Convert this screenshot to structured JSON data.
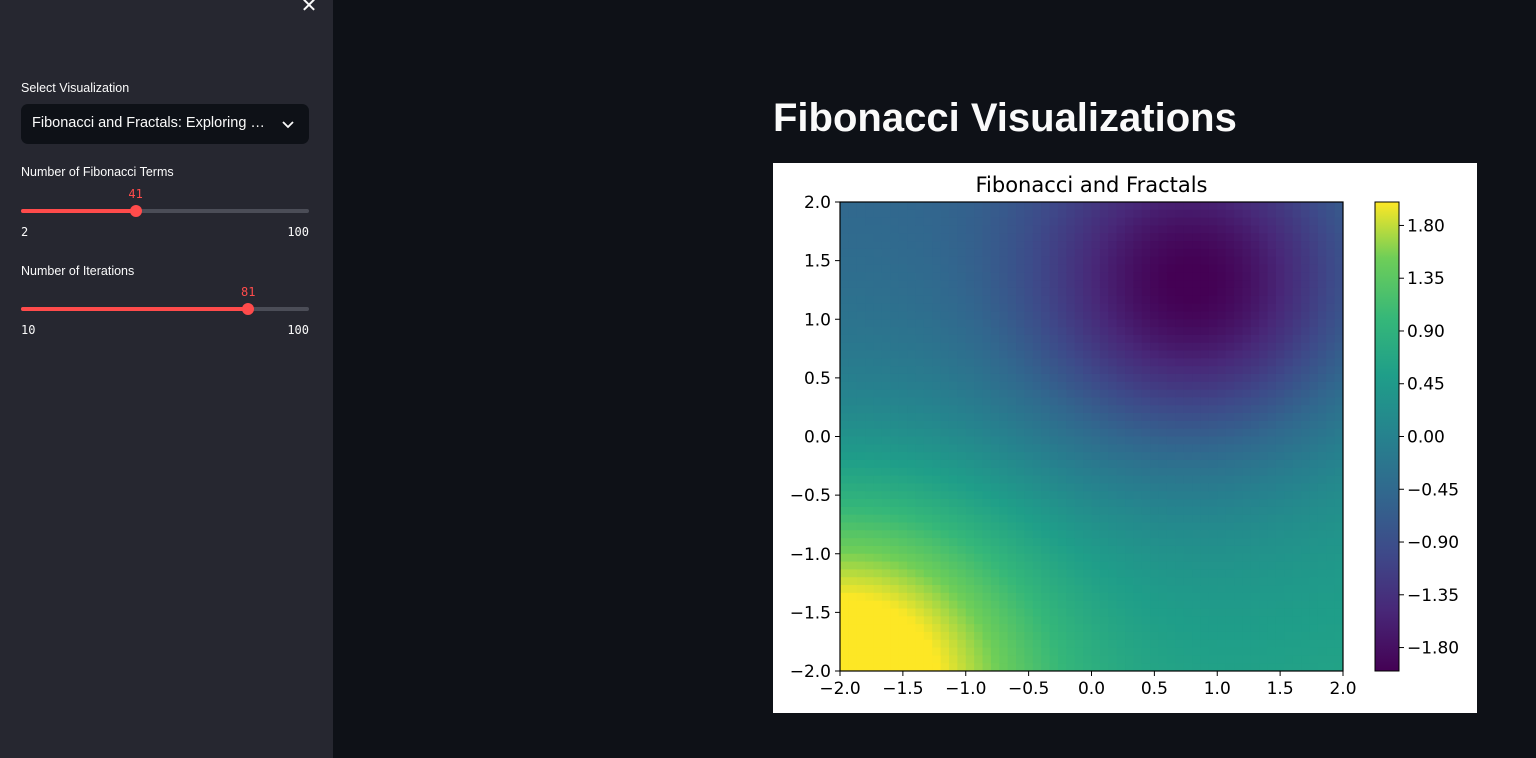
{
  "sidebar": {
    "close_icon": "close-icon",
    "select": {
      "label": "Select Visualization",
      "value": "Fibonacci and Fractals: Exploring the Mandelbrot Set"
    },
    "slider_terms": {
      "label": "Number of Fibonacci Terms",
      "value": "41",
      "min": "2",
      "max": "100",
      "fraction": 0.398
    },
    "slider_iterations": {
      "label": "Number of Iterations",
      "value": "81",
      "min": "10",
      "max": "100",
      "fraction": 0.789
    }
  },
  "main": {
    "title": "Fibonacci Visualizations"
  },
  "colors": {
    "accent": "#ff4b4b",
    "background": "#0e1117",
    "sidebar": "#262730"
  },
  "chart_data": {
    "type": "heatmap",
    "title": "Fibonacci and Fractals",
    "colormap": "viridis",
    "xlim": [
      -2.0,
      2.0
    ],
    "ylim": [
      -2.0,
      2.0
    ],
    "xticks": [
      "−2.0",
      "−1.5",
      "−1.0",
      "−0.5",
      "0.0",
      "0.5",
      "1.0",
      "1.5",
      "2.0"
    ],
    "yticks": [
      "2.0",
      "1.5",
      "1.0",
      "0.5",
      "0.0",
      "−0.5",
      "−1.0",
      "−1.5",
      "−2.0"
    ],
    "colorbar_ticks": [
      "1.80",
      "1.35",
      "0.90",
      "0.45",
      "0.00",
      "−0.45",
      "−0.90",
      "−1.35",
      "−1.80"
    ],
    "colorbar_range": [
      -2.0,
      2.0
    ],
    "features": [
      {
        "x": 0.85,
        "y": 1.25,
        "value": -2.0,
        "description": "minimum"
      },
      {
        "x": -2.0,
        "y": -2.0,
        "value": 2.0,
        "description": "maximum"
      }
    ]
  }
}
